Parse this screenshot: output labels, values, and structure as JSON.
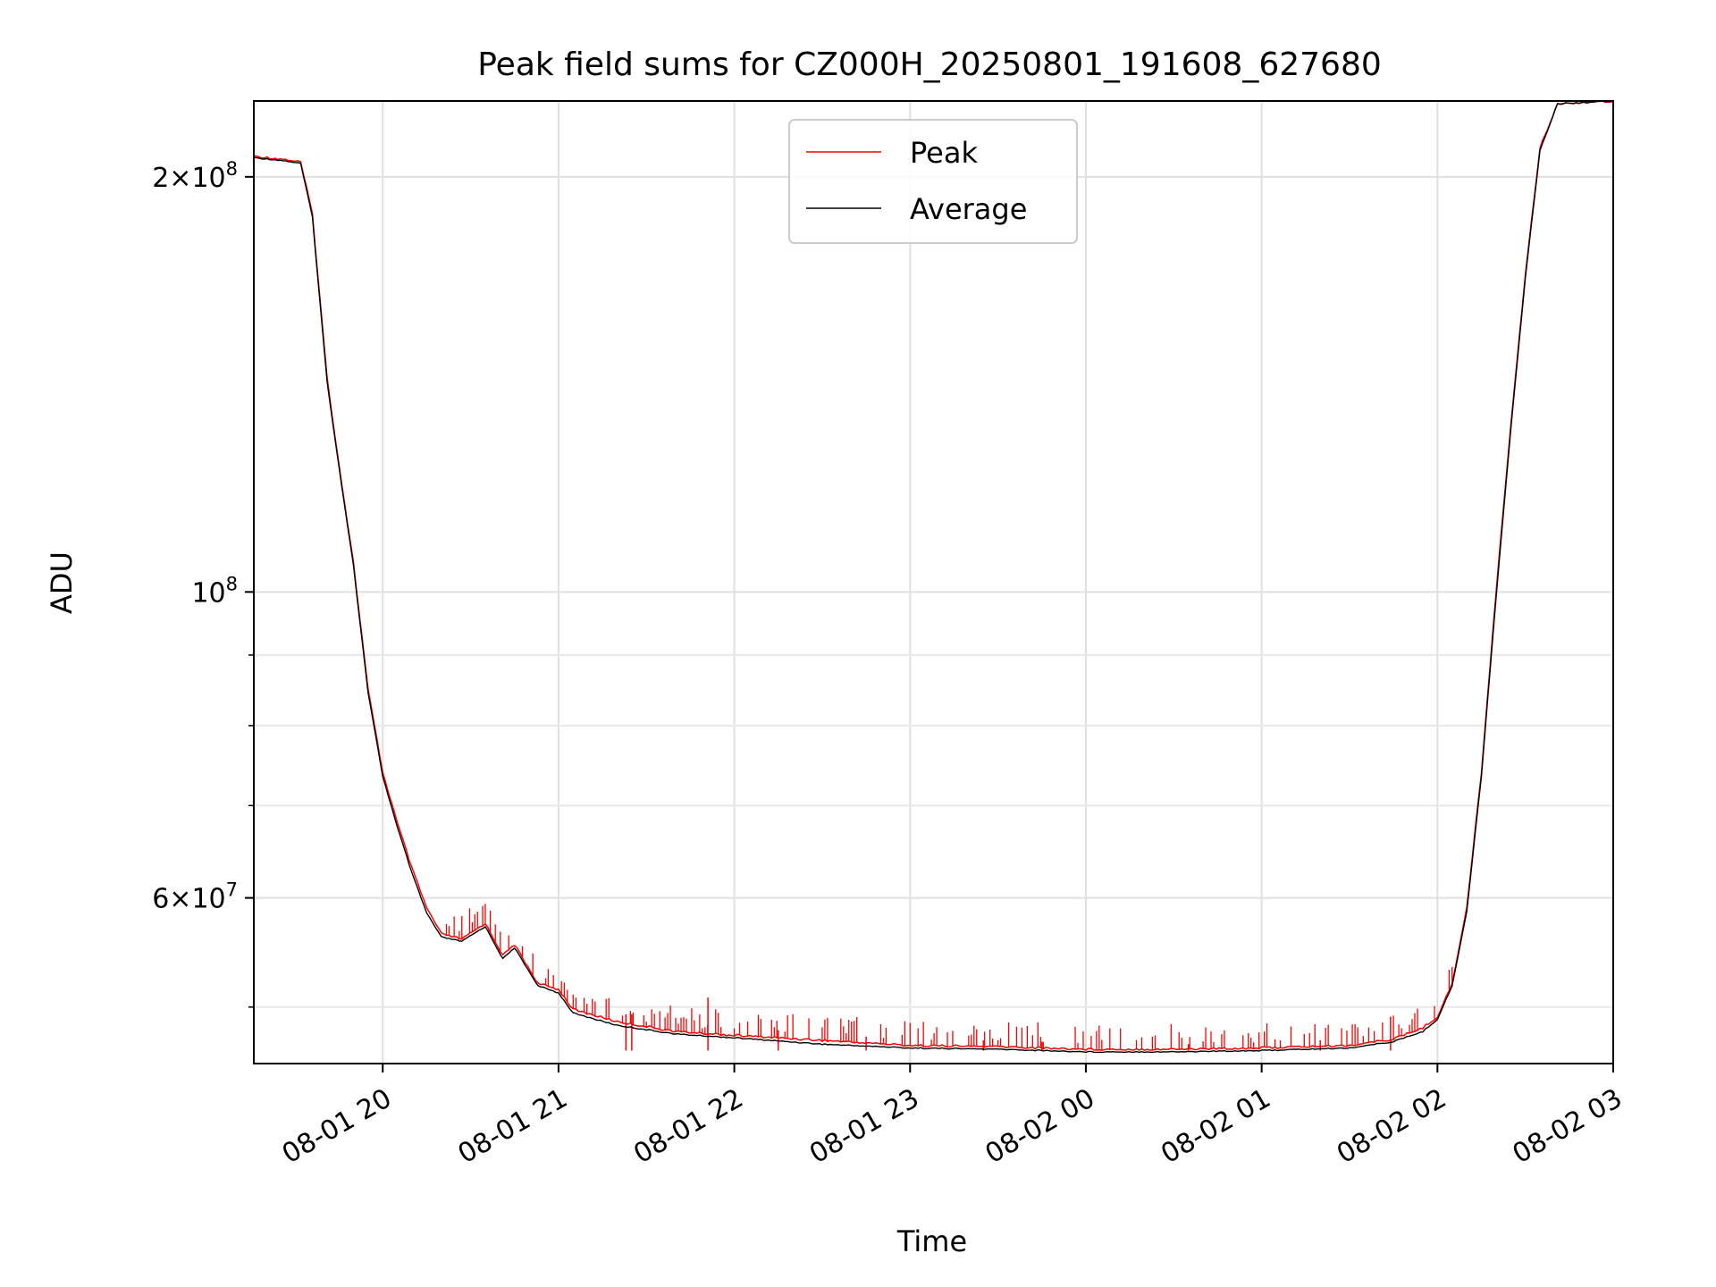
{
  "chart_data": {
    "type": "line",
    "title": "Peak field sums for CZ000H_20250801_191608_627680",
    "xlabel": "Time",
    "ylabel": "ADU",
    "yscale": "log",
    "xlim": [
      "2025-08-01 19:16",
      "2025-08-02 03:00"
    ],
    "ylim": [
      45500000,
      227000000
    ],
    "grid": true,
    "legend_position": "top-center",
    "x_ticks": [
      {
        "t": "2025-08-01 20:00",
        "label": "08-01 20"
      },
      {
        "t": "2025-08-01 21:00",
        "label": "08-01 21"
      },
      {
        "t": "2025-08-01 22:00",
        "label": "08-01 22"
      },
      {
        "t": "2025-08-01 23:00",
        "label": "08-01 23"
      },
      {
        "t": "2025-08-02 00:00",
        "label": "08-02 00"
      },
      {
        "t": "2025-08-02 01:00",
        "label": "08-02 01"
      },
      {
        "t": "2025-08-02 02:00",
        "label": "08-02 02"
      },
      {
        "t": "2025-08-02 03:00",
        "label": "08-02 03"
      }
    ],
    "y_major_ticks": [
      {
        "v": 60000000,
        "base": "6",
        "exp": "7"
      },
      {
        "v": 100000000,
        "base": "",
        "exp": "8"
      },
      {
        "v": 200000000,
        "base": "2",
        "exp": "8"
      }
    ],
    "y_minor_ticks": [
      50000000,
      70000000,
      80000000,
      90000000
    ],
    "series": [
      {
        "name": "Peak",
        "color": "#ff0000",
        "points": [
          [
            "2025-08-01 19:16",
            207000000
          ],
          [
            "2025-08-01 19:26",
            206000000
          ],
          [
            "2025-08-01 19:32",
            205000000
          ],
          [
            "2025-08-01 19:36",
            188000000
          ],
          [
            "2025-08-01 19:41",
            143000000
          ],
          [
            "2025-08-01 19:45",
            124000000
          ],
          [
            "2025-08-01 19:50",
            105000000
          ],
          [
            "2025-08-01 19:55",
            85000000
          ],
          [
            "2025-08-01 20:00",
            74000000
          ],
          [
            "2025-08-01 20:05",
            68000000
          ],
          [
            "2025-08-01 20:10",
            63000000
          ],
          [
            "2025-08-01 20:15",
            59000000
          ],
          [
            "2025-08-01 20:20",
            56500000
          ],
          [
            "2025-08-01 20:27",
            56000000
          ],
          [
            "2025-08-01 20:35",
            57500000
          ],
          [
            "2025-08-01 20:41",
            54500000
          ],
          [
            "2025-08-01 20:45",
            55500000
          ],
          [
            "2025-08-01 20:53",
            52000000
          ],
          [
            "2025-08-01 21:00",
            51500000
          ],
          [
            "2025-08-01 21:05",
            49800000
          ],
          [
            "2025-08-01 21:20",
            48800000
          ],
          [
            "2025-08-01 21:40",
            48000000
          ],
          [
            "2025-08-01 22:00",
            47700000
          ],
          [
            "2025-08-01 22:30",
            47300000
          ],
          [
            "2025-08-01 23:00",
            46900000
          ],
          [
            "2025-08-01 23:30",
            46800000
          ],
          [
            "2025-08-02 00:00",
            46600000
          ],
          [
            "2025-08-02 00:30",
            46600000
          ],
          [
            "2025-08-02 01:00",
            46700000
          ],
          [
            "2025-08-02 01:30",
            46900000
          ],
          [
            "2025-08-02 01:45",
            47400000
          ],
          [
            "2025-08-02 01:55",
            48300000
          ],
          [
            "2025-08-02 02:00",
            49200000
          ],
          [
            "2025-08-02 02:05",
            52000000
          ],
          [
            "2025-08-02 02:10",
            59000000
          ],
          [
            "2025-08-02 02:15",
            74000000
          ],
          [
            "2025-08-02 02:20",
            100000000
          ],
          [
            "2025-08-02 02:25",
            132000000
          ],
          [
            "2025-08-02 02:30",
            170000000
          ],
          [
            "2025-08-02 02:35",
            210000000
          ],
          [
            "2025-08-02 02:41",
            226000000
          ],
          [
            "2025-08-02 03:00",
            227000000
          ]
        ],
        "spikes": [
          [
            "2025-08-01 21:23",
            49400000
          ],
          [
            "2025-08-01 21:25",
            49400000
          ],
          [
            "2025-08-01 21:51",
            50800000
          ],
          [
            "2025-08-01 22:15",
            48100000
          ],
          [
            "2025-08-01 22:45",
            47600000
          ],
          [
            "2025-08-01 23:25",
            47300000
          ],
          [
            "2025-08-01 23:45",
            47200000
          ],
          [
            "2025-08-02 00:35",
            47000000
          ],
          [
            "2025-08-02 01:20",
            47300000
          ],
          [
            "2025-08-02 01:44",
            49200000
          ]
        ]
      },
      {
        "name": "Average",
        "color": "#000000",
        "points": [
          [
            "2025-08-01 19:16",
            206500000
          ],
          [
            "2025-08-01 19:26",
            205500000
          ],
          [
            "2025-08-01 19:32",
            204500000
          ],
          [
            "2025-08-01 19:36",
            187000000
          ],
          [
            "2025-08-01 19:41",
            142000000
          ],
          [
            "2025-08-01 19:45",
            123500000
          ],
          [
            "2025-08-01 19:50",
            104500000
          ],
          [
            "2025-08-01 19:55",
            84500000
          ],
          [
            "2025-08-01 20:00",
            73500000
          ],
          [
            "2025-08-01 20:05",
            67500000
          ],
          [
            "2025-08-01 20:10",
            62500000
          ],
          [
            "2025-08-01 20:15",
            58500000
          ],
          [
            "2025-08-01 20:20",
            56200000
          ],
          [
            "2025-08-01 20:27",
            55800000
          ],
          [
            "2025-08-01 20:35",
            57200000
          ],
          [
            "2025-08-01 20:41",
            54200000
          ],
          [
            "2025-08-01 20:45",
            55200000
          ],
          [
            "2025-08-01 20:53",
            51800000
          ],
          [
            "2025-08-01 21:00",
            51200000
          ],
          [
            "2025-08-01 21:05",
            49500000
          ],
          [
            "2025-08-01 21:20",
            48500000
          ],
          [
            "2025-08-01 21:40",
            47800000
          ],
          [
            "2025-08-01 22:00",
            47500000
          ],
          [
            "2025-08-01 22:30",
            47000000
          ],
          [
            "2025-08-01 23:00",
            46700000
          ],
          [
            "2025-08-01 23:30",
            46600000
          ],
          [
            "2025-08-02 00:00",
            46400000
          ],
          [
            "2025-08-02 00:30",
            46400000
          ],
          [
            "2025-08-02 01:00",
            46500000
          ],
          [
            "2025-08-02 01:30",
            46700000
          ],
          [
            "2025-08-02 01:45",
            47200000
          ],
          [
            "2025-08-02 01:55",
            48000000
          ],
          [
            "2025-08-02 02:00",
            49000000
          ],
          [
            "2025-08-02 02:05",
            51800000
          ],
          [
            "2025-08-02 02:10",
            58600000
          ],
          [
            "2025-08-02 02:15",
            73500000
          ],
          [
            "2025-08-02 02:20",
            99000000
          ],
          [
            "2025-08-02 02:25",
            131000000
          ],
          [
            "2025-08-02 02:30",
            169000000
          ],
          [
            "2025-08-02 02:35",
            209000000
          ],
          [
            "2025-08-02 02:41",
            226000000
          ],
          [
            "2025-08-02 03:00",
            227000000
          ]
        ]
      }
    ]
  }
}
